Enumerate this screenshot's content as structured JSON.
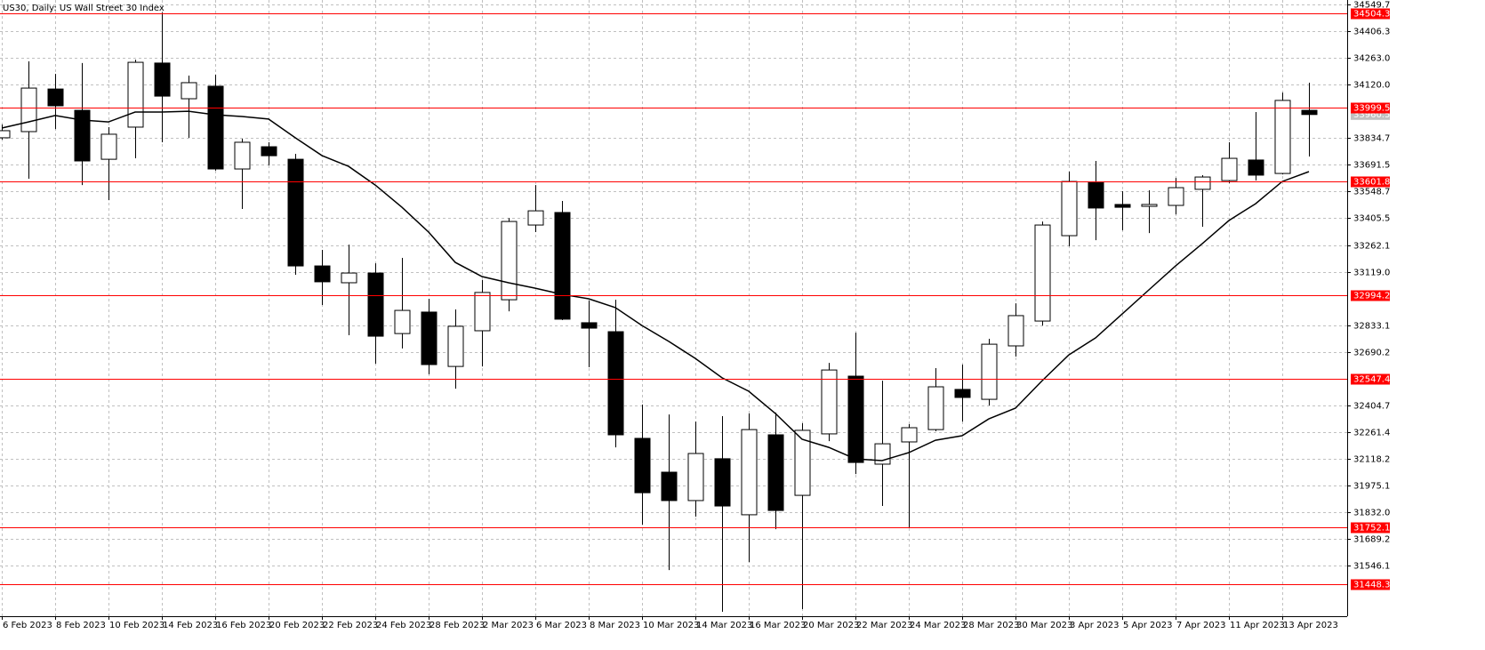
{
  "chart_data": {
    "type": "candlestick",
    "title": "US30, Daily:  US Wall Street 30 Index",
    "categories": [
      "6 Feb 2023",
      null,
      "8 Feb 2023",
      null,
      "10 Feb 2023",
      null,
      "14 Feb 2023",
      null,
      "16 Feb 2023",
      null,
      "20 Feb 2023",
      null,
      "22 Feb 2023",
      null,
      "24 Feb 2023",
      null,
      "28 Feb 2023",
      null,
      "2 Mar 2023",
      null,
      "6 Mar 2023",
      null,
      "8 Mar 2023",
      null,
      "10 Mar 2023",
      null,
      "14 Mar 2023",
      null,
      "16 Mar 2023",
      null,
      "20 Mar 2023",
      null,
      "22 Mar 2023",
      null,
      "24 Mar 2023",
      null,
      "28 Mar 2023",
      null,
      "30 Mar 2023",
      null,
      "3 Apr 2023",
      null,
      "5 Apr 2023",
      null,
      "7 Apr 2023",
      null,
      "11 Apr 2023",
      null,
      "13 Apr 2023",
      null
    ],
    "open": [
      33836,
      33869,
      34097,
      33983,
      33721,
      33893,
      34236,
      34045,
      34112,
      33669,
      33788,
      33721,
      33150,
      33060,
      33112,
      32788,
      32903,
      32612,
      32803,
      32969,
      33369,
      33436,
      32846,
      32798,
      32227,
      32046,
      31894,
      32118,
      31818,
      32246,
      31922,
      32251,
      32560,
      32089,
      32208,
      32274,
      32489,
      32436,
      32722,
      32855,
      33312,
      33598,
      33479,
      33469,
      33474,
      33560,
      33607,
      33717,
      33645,
      33983
    ],
    "high": [
      33907,
      34245,
      34178,
      34236,
      33893,
      34254,
      34507,
      34169,
      34174,
      33831,
      33812,
      33750,
      33236,
      33264,
      33164,
      33193,
      32974,
      32917,
      33074,
      33407,
      33583,
      33498,
      32965,
      32969,
      32408,
      32355,
      32317,
      32346,
      32360,
      32365,
      32308,
      32631,
      32793,
      32536,
      32303,
      32603,
      32622,
      32760,
      32950,
      33388,
      33655,
      33712,
      33550,
      33555,
      33621,
      33636,
      33812,
      33974,
      34078,
      34131
    ],
    "low": [
      33826,
      33617,
      33883,
      33583,
      33502,
      33726,
      33812,
      33836,
      33660,
      33455,
      33688,
      33103,
      32941,
      32779,
      32627,
      32708,
      32570,
      32493,
      32612,
      32907,
      33331,
      32860,
      32608,
      32179,
      31765,
      31522,
      31808,
      31299,
      31565,
      31741,
      31313,
      32212,
      32036,
      31865,
      31751,
      32265,
      32317,
      32403,
      32665,
      32831,
      33255,
      33288,
      33341,
      33326,
      33426,
      33360,
      33593,
      33607,
      33640,
      33736
    ],
    "close": [
      33874,
      34102,
      34007,
      33712,
      33855,
      34240,
      34059,
      34131,
      33669,
      33812,
      33740,
      33150,
      33065,
      33112,
      32774,
      32912,
      32622,
      32827,
      33008,
      33388,
      33445,
      32865,
      32817,
      32246,
      31936,
      31894,
      32146,
      31865,
      32274,
      31841,
      32270,
      32593,
      32098,
      32198,
      32284,
      32503,
      32446,
      32731,
      32884,
      33369,
      33602,
      33460,
      33464,
      33479,
      33569,
      33626,
      33726,
      33636,
      34036,
      33960.5
    ],
    "up_color": "#ffffff",
    "down_color": "#000000",
    "ma": {
      "color": "#000000",
      "values": [
        33888,
        33921,
        33955,
        33931,
        33921,
        33974,
        33974,
        33978,
        33959,
        33950,
        33936,
        33836,
        33741,
        33683,
        33583,
        33464,
        33331,
        33169,
        33093,
        33060,
        33031,
        32998,
        32974,
        32927,
        32831,
        32746,
        32655,
        32551,
        32479,
        32360,
        32222,
        32179,
        32117,
        32108,
        32151,
        32217,
        32241,
        32331,
        32389,
        32536,
        32674,
        32765,
        32893,
        33022,
        33150,
        33269,
        33393,
        33483,
        33602,
        33655
      ]
    },
    "levels": {
      "color": "#ff0000",
      "values": [
        34504.3,
        33999.5,
        33601.8,
        32994.2,
        32547.4,
        31752.1,
        31448.3
      ]
    },
    "last_price": {
      "value": 33960.5,
      "color": "#c0c0c0"
    },
    "ylim": [
      31275,
      34573.5
    ],
    "yticks": [
      34549.7,
      34406.3,
      {
        "value": 34263,
        "label": "34263.0"
      },
      {
        "value": 34120,
        "label": "34120.0"
      },
      33834.7,
      33691.5,
      33548.7,
      33405.5,
      33262.1,
      {
        "value": 33119,
        "label": "33119.0"
      },
      32833.1,
      32690.2,
      32404.7,
      32261.4,
      32118.2,
      31975.1,
      {
        "value": 31832,
        "label": "31832.0"
      },
      31689.2,
      31546.1
    ],
    "grid": true
  }
}
